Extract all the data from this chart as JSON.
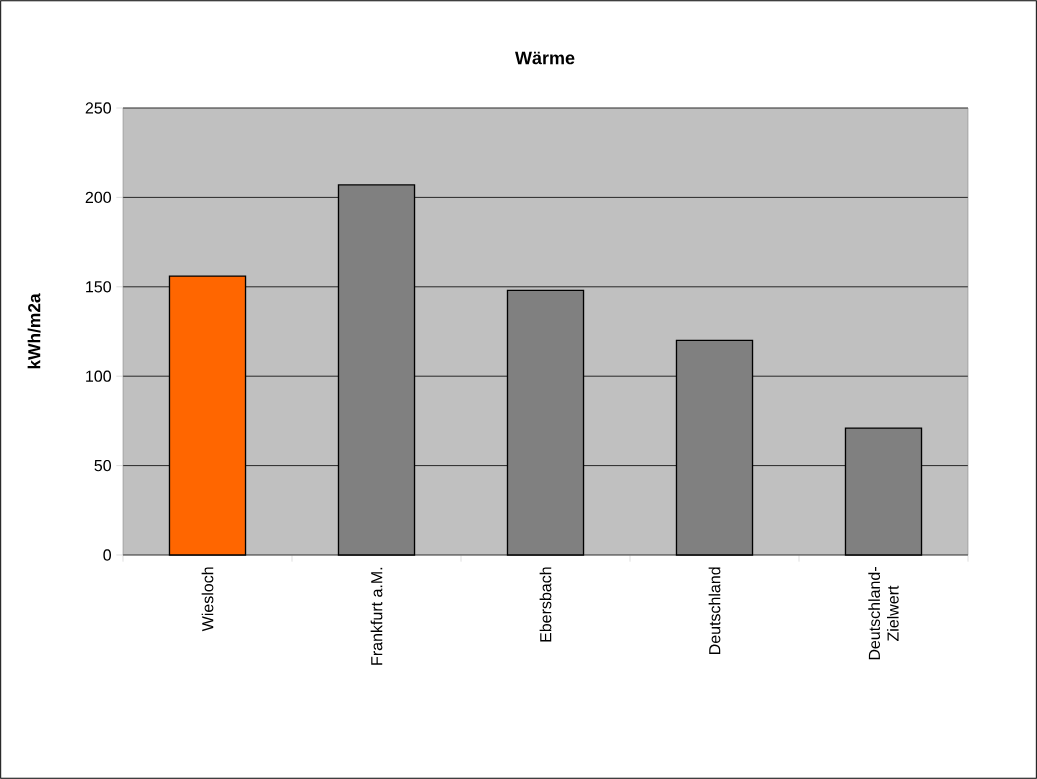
{
  "chart_data": {
    "type": "bar",
    "title": "Wärme",
    "ylabel": "kWh/m2a",
    "categories": [
      "Wiesloch",
      "Frankfurt a.M.",
      "Ebersbach",
      "Deutschland",
      "Deutschland-Zielwert"
    ],
    "values": [
      156,
      207,
      148,
      120,
      71
    ],
    "colors": [
      "#ff6600",
      "#808080",
      "#808080",
      "#808080",
      "#808080"
    ],
    "ylim": [
      0,
      250
    ],
    "yticks": [
      0,
      50,
      100,
      150,
      200,
      250
    ],
    "grid": "y"
  }
}
